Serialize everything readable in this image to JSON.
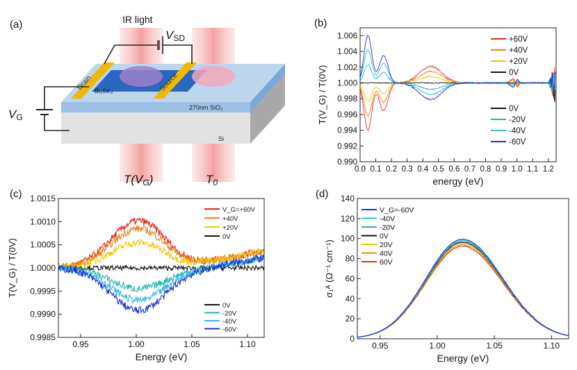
{
  "schematic": {
    "panel_label": "(a)",
    "ir_light": "IR light",
    "vsd": "V",
    "vsd_sub": "SD",
    "drain": "Drain",
    "source": "Source",
    "material": "Bi₂Se₃",
    "oxide": "270nm SiO₂",
    "substrate": "Si",
    "vg": "V",
    "vg_sub": "G",
    "t_vg": "T(V",
    "t_vg_sub": "G",
    "t_vg_end": ")",
    "t0": "T",
    "t0_sub": "0"
  },
  "chart_data": [
    {
      "id": "b",
      "panel_label": "(b)",
      "type": "line",
      "xlabel": "energy (eV)",
      "ylabel": "T(V_G) / T(0V)",
      "xlim": [
        0.0,
        1.25
      ],
      "ylim": [
        0.99,
        1.007
      ],
      "xticks": [
        "0.0",
        "0.1",
        "0.2",
        "0.3",
        "0.4",
        "0.5",
        "0.6",
        "0.7",
        "0.8",
        "0.9",
        "1.0",
        "1.1",
        "1.2"
      ],
      "yticks": [
        "0.990",
        "0.992",
        "0.994",
        "0.996",
        "0.998",
        "1.000",
        "1.002",
        "1.004",
        "1.006"
      ],
      "legend_top": [
        "+60V",
        "+40V",
        "+20V",
        "0V"
      ],
      "legend_bottom": [
        "0V",
        "-20V",
        "-40V",
        "-60V"
      ],
      "series": [
        {
          "name": "+60V",
          "color": "#e8261c",
          "amp": 1,
          "noise": 8e-05
        },
        {
          "name": "+40V",
          "color": "#f07f12",
          "amp": 0.7,
          "noise": 8e-05
        },
        {
          "name": "+20V",
          "color": "#e9c800",
          "amp": 0.38,
          "noise": 8e-05
        },
        {
          "name": "0V",
          "color": "#111111",
          "amp": 0,
          "noise": 6e-05
        },
        {
          "name": "-20V",
          "color": "#1fb5b0",
          "amp": -0.38,
          "noise": 8e-05
        },
        {
          "name": "-40V",
          "color": "#35b4ec",
          "amp": -0.7,
          "noise": 8e-05
        },
        {
          "name": "-60V",
          "color": "#1a2ddc",
          "amp": -1,
          "noise": 8e-05
        }
      ]
    },
    {
      "id": "c",
      "panel_label": "(c)",
      "type": "line",
      "xlabel": "Energy (eV)",
      "ylabel": "T(V_G) / T(0V)",
      "xlim": [
        0.93,
        1.115
      ],
      "ylim": [
        0.9985,
        1.0015
      ],
      "xticks": [
        "0.95",
        "1.00",
        "1.05",
        "1.10"
      ],
      "yticks": [
        "0.9985",
        "0.9990",
        "0.9995",
        "1.0000",
        "1.0005",
        "1.0010",
        "1.0015"
      ],
      "legend_top": [
        "V_G=+60V",
        "+40V",
        "+20V",
        "0V"
      ],
      "legend_bottom": [
        "0V",
        "-20V",
        "-40V",
        "-60V"
      ],
      "series": [
        {
          "name": "+60V",
          "color": "#e8261c",
          "peak": 0.00102,
          "noise": 8e-05
        },
        {
          "name": "+40V",
          "color": "#f07f12",
          "peak": 0.00085,
          "noise": 8e-05
        },
        {
          "name": "+20V",
          "color": "#f0c800",
          "peak": 0.00055,
          "noise": 8e-05
        },
        {
          "name": "0V",
          "color": "#111111",
          "peak": 0.0,
          "noise": 5e-05
        },
        {
          "name": "-20V",
          "color": "#1fb5b0",
          "peak": -0.00045,
          "noise": 8e-05
        },
        {
          "name": "-40V",
          "color": "#35b4ec",
          "peak": -0.0007,
          "noise": 8e-05
        },
        {
          "name": "-60V",
          "color": "#1a2ddc",
          "peak": -0.00092,
          "noise": 8e-05
        }
      ]
    },
    {
      "id": "d",
      "panel_label": "(d)",
      "type": "line",
      "xlabel": "Energy (eV)",
      "ylabel": "σ₁ᴬ (Ω⁻¹ cm⁻¹)",
      "xlim": [
        0.93,
        1.115
      ],
      "ylim": [
        0,
        140
      ],
      "xticks": [
        "0.95",
        "1.00",
        "1.05",
        "1.10"
      ],
      "yticks": [
        "0",
        "20",
        "40",
        "60",
        "80",
        "100",
        "120",
        "140"
      ],
      "legend": [
        "V_G=-60V",
        "-40V",
        "-20V",
        "0V",
        "20V",
        "40V",
        "60V"
      ],
      "series": [
        {
          "name": "-60V",
          "color": "#1a2ddc",
          "peak": 99
        },
        {
          "name": "-40V",
          "color": "#35b4ec",
          "peak": 98
        },
        {
          "name": "-20V",
          "color": "#1fb5b0",
          "peak": 97
        },
        {
          "name": "0V",
          "color": "#111111",
          "peak": 96
        },
        {
          "name": "20V",
          "color": "#e9c800",
          "peak": 95
        },
        {
          "name": "40V",
          "color": "#f07f12",
          "peak": 93.5
        },
        {
          "name": "60V",
          "color": "#e8261c",
          "peak": 92
        }
      ]
    }
  ]
}
